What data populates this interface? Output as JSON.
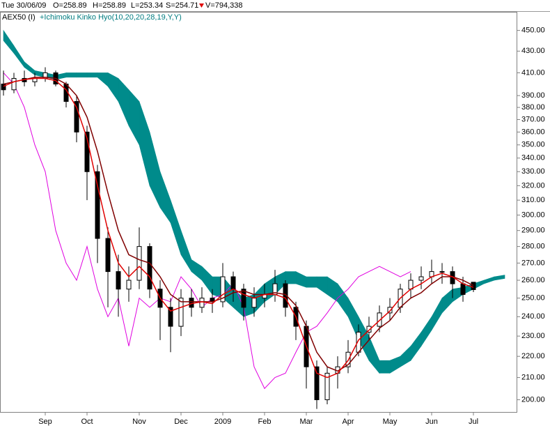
{
  "header": {
    "date": "Tue 30/06/09",
    "open": "O=258.89",
    "high": "H=258.89",
    "low": "L=253.34",
    "close": "S=254.71",
    "volume": "V=794,338"
  },
  "chart_data": {
    "type": "candlestick",
    "instrument": "AEX50 (I)",
    "indicator": "+Ichimoku Kinko Hyo(10,20,20,28,19,Y,Y)",
    "categories": [
      null,
      null,
      null,
      null,
      "Sep",
      null,
      null,
      null,
      "Oct",
      null,
      null,
      null,
      null,
      "Nov",
      null,
      null,
      null,
      "Dec",
      null,
      null,
      null,
      "2009",
      null,
      null,
      null,
      "Feb",
      null,
      null,
      null,
      "Mar",
      null,
      null,
      null,
      "Apr",
      null,
      null,
      null,
      "May",
      null,
      null,
      null,
      "Jun",
      null,
      null,
      null,
      "Jul",
      null,
      null,
      null
    ],
    "open": [
      400,
      395,
      405,
      402,
      405,
      410,
      400,
      385,
      360,
      330,
      285,
      265,
      255,
      260,
      280,
      255,
      245,
      235,
      250,
      245,
      250,
      248,
      262,
      255,
      245,
      250,
      252,
      258,
      245,
      235,
      215,
      200,
      212,
      215,
      222,
      232,
      235,
      242,
      245,
      255,
      260,
      262,
      265,
      265,
      258,
      258.89,
      null,
      null,
      null
    ],
    "high": [
      412,
      410,
      412,
      410,
      415,
      412,
      402,
      390,
      365,
      335,
      292,
      275,
      268,
      292,
      282,
      260,
      250,
      255,
      255,
      256,
      255,
      270,
      265,
      258,
      256,
      258,
      266,
      260,
      248,
      238,
      218,
      215,
      220,
      228,
      236,
      240,
      246,
      250,
      258,
      264,
      268,
      272,
      270,
      268,
      262,
      258.89,
      null,
      null,
      null
    ],
    "low": [
      390,
      392,
      398,
      398,
      402,
      398,
      380,
      352,
      310,
      270,
      245,
      240,
      248,
      255,
      250,
      228,
      222,
      230,
      240,
      242,
      242,
      245,
      248,
      238,
      240,
      245,
      248,
      240,
      228,
      205,
      196,
      198,
      205,
      212,
      220,
      228,
      232,
      238,
      242,
      250,
      255,
      258,
      258,
      250,
      248,
      253.34,
      null,
      null,
      null
    ],
    "close": [
      395,
      405,
      402,
      405,
      410,
      400,
      385,
      360,
      330,
      285,
      265,
      255,
      260,
      280,
      255,
      245,
      235,
      250,
      245,
      250,
      248,
      262,
      255,
      245,
      250,
      252,
      258,
      245,
      235,
      215,
      200,
      212,
      215,
      222,
      232,
      235,
      242,
      245,
      255,
      260,
      262,
      265,
      265,
      258,
      252,
      254.71,
      null,
      null,
      null
    ],
    "ma_fast": [
      398,
      402,
      404,
      405,
      405,
      403,
      395,
      380,
      355,
      320,
      290,
      270,
      262,
      268,
      262,
      250,
      243,
      245,
      247,
      248,
      247,
      252,
      255,
      252,
      250,
      252,
      252,
      250,
      240,
      225,
      212,
      210,
      212,
      218,
      228,
      233,
      238,
      243,
      250,
      255,
      258,
      262,
      264,
      262,
      258,
      256,
      null,
      null,
      null
    ],
    "ma_slow": [
      400,
      402,
      404,
      406,
      406,
      405,
      400,
      390,
      372,
      345,
      315,
      290,
      275,
      272,
      270,
      262,
      252,
      248,
      248,
      248,
      248,
      250,
      253,
      254,
      252,
      252,
      253,
      252,
      246,
      235,
      222,
      215,
      213,
      216,
      222,
      228,
      234,
      238,
      245,
      250,
      253,
      258,
      262,
      262,
      260,
      257,
      null,
      null,
      null
    ],
    "lagging_span": [
      410,
      400,
      380,
      350,
      330,
      290,
      270,
      260,
      280,
      255,
      240,
      250,
      225,
      250,
      245,
      250,
      248,
      262,
      255,
      245,
      250,
      252,
      258,
      245,
      215,
      205,
      210,
      212,
      222,
      232,
      235,
      242,
      250,
      255,
      262,
      265,
      268,
      265,
      262,
      265,
      null,
      null,
      null,
      null,
      null,
      null,
      null,
      null,
      null
    ],
    "span_a": [
      450,
      435,
      420,
      412,
      410,
      408,
      410,
      410,
      410,
      410,
      410,
      405,
      395,
      385,
      360,
      330,
      310,
      290,
      272,
      268,
      262,
      262,
      255,
      250,
      252,
      258,
      262,
      265,
      265,
      262,
      262,
      262,
      258,
      250,
      240,
      230,
      218,
      218,
      220,
      225,
      232,
      240,
      250,
      255,
      256,
      258,
      260,
      262,
      263
    ],
    "span_b": [
      440,
      428,
      415,
      408,
      406,
      404,
      406,
      406,
      406,
      406,
      398,
      385,
      365,
      350,
      320,
      305,
      295,
      275,
      265,
      260,
      252,
      250,
      245,
      240,
      242,
      248,
      252,
      258,
      258,
      256,
      256,
      252,
      248,
      240,
      228,
      218,
      212,
      212,
      215,
      218,
      225,
      233,
      242,
      248,
      252,
      255,
      258,
      260,
      261
    ],
    "colors": {
      "candle": "#000000",
      "ma_fast": "#e00000",
      "ma_slow": "#800000",
      "lagging_span": "#e000e0",
      "cloud": "#008b8b"
    },
    "log_scale": true,
    "ylim": [
      195,
      468
    ],
    "yticks": [
      {
        "value": 200,
        "label": "200.00"
      },
      {
        "value": 210,
        "label": "210.00"
      },
      {
        "value": 220,
        "label": "220.00"
      },
      {
        "value": 230,
        "label": "230.00"
      },
      {
        "value": 240,
        "label": "240.00"
      },
      {
        "value": 250,
        "label": "250.00"
      },
      {
        "value": 260,
        "label": "260.00"
      },
      {
        "value": 270,
        "label": "270.00"
      },
      {
        "value": 280,
        "label": "280.00"
      },
      {
        "value": 290,
        "label": "290.00"
      },
      {
        "value": 300,
        "label": "300.00"
      },
      {
        "value": 310,
        "label": "310.00"
      },
      {
        "value": 320,
        "label": "320.00"
      },
      {
        "value": 330,
        "label": "330.00"
      },
      {
        "value": 340,
        "label": "340.00"
      },
      {
        "value": 350,
        "label": "350.00"
      },
      {
        "value": 360,
        "label": "360.00"
      },
      {
        "value": 370,
        "label": "370.00"
      },
      {
        "value": 380,
        "label": "380.00"
      },
      {
        "value": 390,
        "label": "390.00"
      },
      {
        "value": 410,
        "label": "410.00"
      },
      {
        "value": 430,
        "label": "430.00"
      },
      {
        "value": 450,
        "label": "450.00"
      }
    ]
  }
}
